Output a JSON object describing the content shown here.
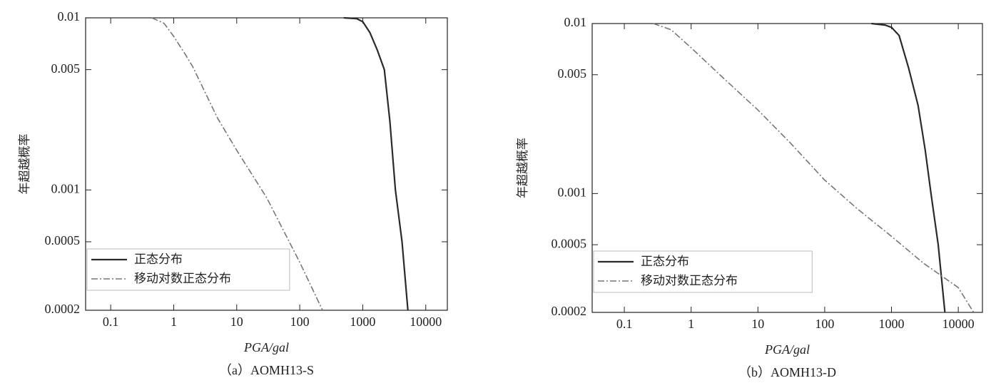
{
  "chart_data": [
    {
      "type": "line",
      "caption": "（a）AOMH13-S",
      "xlabel": "PGA/gal",
      "ylabel": "年超越概率",
      "xlog": true,
      "ylog": true,
      "xlim": [
        0.04,
        22000
      ],
      "ylim": [
        0.0002,
        0.01
      ],
      "xticks": [
        0.1,
        1,
        10,
        100,
        1000,
        10000
      ],
      "yticks": [
        0.01,
        0.005,
        0.001,
        0.0005,
        0.0002
      ],
      "legend": "lower left",
      "series": [
        {
          "name": "正态分布",
          "color": "#2a2a2a",
          "linestyle": "solid",
          "x": [
            500,
            800,
            1000,
            1300,
            1700,
            2200,
            2700,
            3300,
            4200,
            5200
          ],
          "values": [
            0.01,
            0.0099,
            0.0095,
            0.0082,
            0.0065,
            0.005,
            0.0025,
            0.001,
            0.0005,
            0.0002
          ]
        },
        {
          "name": "移动对数正态分布",
          "color": "#777777",
          "linestyle": "dashdot",
          "x": [
            0.45,
            0.7,
            1,
            1.5,
            2,
            5,
            10,
            30,
            100,
            230
          ],
          "values": [
            0.01,
            0.0093,
            0.0078,
            0.0062,
            0.0052,
            0.0026,
            0.0017,
            0.0009,
            0.00038,
            0.0002
          ]
        }
      ]
    },
    {
      "type": "line",
      "caption": "（b）AOMH13-D",
      "xlabel": "PGA/gal",
      "ylabel": "年超越概率",
      "xlog": true,
      "ylog": true,
      "xlim": [
        0.033,
        23000
      ],
      "ylim": [
        0.0002,
        0.01
      ],
      "xticks": [
        0.1,
        1,
        10,
        100,
        1000,
        10000
      ],
      "yticks": [
        0.01,
        0.005,
        0.001,
        0.0005,
        0.0002
      ],
      "legend": "lower left",
      "series": [
        {
          "name": "正态分布",
          "color": "#2a2a2a",
          "linestyle": "solid",
          "x": [
            500,
            800,
            1000,
            1300,
            1800,
            2500,
            3200,
            3900,
            5000,
            6300
          ],
          "values": [
            0.01,
            0.0098,
            0.0095,
            0.0085,
            0.0055,
            0.0033,
            0.0018,
            0.001,
            0.0005,
            0.0002
          ]
        },
        {
          "name": "移动对数正态分布",
          "color": "#777777",
          "linestyle": "dashdot",
          "x": [
            0.27,
            0.5,
            1,
            3,
            10,
            30,
            100,
            300,
            1000,
            3000,
            10000,
            17000
          ],
          "values": [
            0.01,
            0.0092,
            0.0072,
            0.0048,
            0.0031,
            0.002,
            0.0012,
            0.00082,
            0.00056,
            0.00039,
            0.00028,
            0.0002
          ]
        }
      ]
    }
  ]
}
